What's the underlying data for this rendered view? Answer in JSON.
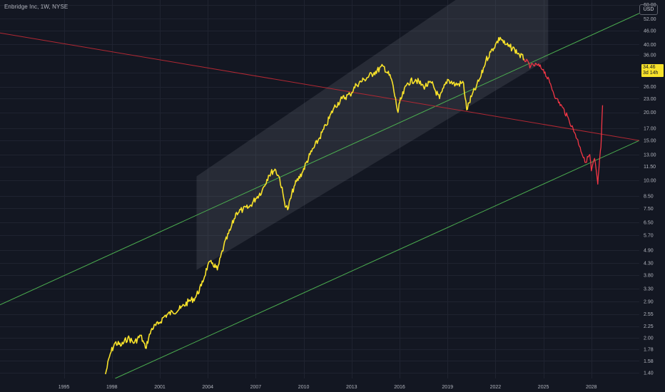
{
  "header": {
    "title": "Enbridge Inc, 1W, NYSE",
    "currency_button": "USD"
  },
  "price_tag": {
    "price": "34.46",
    "countdown": "3d 14h"
  },
  "colors": {
    "background": "#131722",
    "grid": "#1f2330",
    "axis_text": "#b2b5be",
    "price_line": "#f8e22a",
    "projection_line": "#f23645",
    "trend_line": "#4caf50",
    "downtrend_line": "#b22833",
    "channel_fill": "#787b86"
  },
  "chart_data": {
    "type": "line",
    "scale": "log",
    "title": "Enbridge Inc, 1W, NYSE",
    "xlabel": "",
    "ylabel": "",
    "xlim": [
      1991.0,
      2031.0
    ],
    "ylim": [
      1.32,
      63.0
    ],
    "x_ticks": [
      "1995",
      "1998",
      "2001",
      "2004",
      "2007",
      "2010",
      "2013",
      "2016",
      "2019",
      "2022",
      "2025",
      "2028"
    ],
    "y_ticks": [
      "60.00",
      "52.00",
      "46.00",
      "40.00",
      "36.00",
      "30.00",
      "26.00",
      "23.00",
      "20.00",
      "17.00",
      "15.00",
      "13.00",
      "11.50",
      "10.00",
      "8.50",
      "7.50",
      "6.50",
      "5.70",
      "4.90",
      "4.30",
      "3.80",
      "3.30",
      "2.90",
      "2.55",
      "2.25",
      "2.00",
      "1.78",
      "1.58",
      "1.40"
    ],
    "series": [
      {
        "role": "historical",
        "color": "#f8e22a",
        "x": [
          1997.6,
          1997.9,
          1998.2,
          1998.6,
          1999.0,
          1999.4,
          1999.8,
          2000.1,
          2000.5,
          2000.9,
          2001.3,
          2001.8,
          2002.3,
          2002.8,
          2003.2,
          2003.6,
          2004.0,
          2004.3,
          2004.6,
          2005.0,
          2005.4,
          2005.8,
          2006.2,
          2006.6,
          2007.0,
          2007.4,
          2007.8,
          2008.2,
          2008.5,
          2008.8,
          2009.0,
          2009.4,
          2009.9,
          2010.4,
          2010.9,
          2011.4,
          2011.9,
          2012.4,
          2012.9,
          2013.3,
          2013.8,
          2014.4,
          2015.0,
          2015.5,
          2015.9,
          2016.0,
          2016.5,
          2017.0,
          2017.5,
          2018.0,
          2018.5,
          2019.0,
          2019.5,
          2020.0,
          2020.2,
          2020.5,
          2020.8,
          2021.1,
          2021.4,
          2021.7,
          2022.0,
          2022.3,
          2022.6,
          2022.9,
          2023.2,
          2023.5,
          2023.8
        ],
        "y": [
          1.38,
          1.7,
          1.9,
          1.85,
          2.0,
          1.9,
          2.05,
          1.8,
          2.2,
          2.3,
          2.5,
          2.6,
          2.7,
          2.9,
          3.0,
          3.4,
          4.2,
          4.3,
          4.0,
          5.1,
          6.0,
          7.2,
          7.4,
          7.6,
          8.3,
          9.0,
          10.5,
          11.2,
          10.2,
          8.0,
          7.4,
          9.4,
          10.8,
          13.0,
          15.0,
          17.5,
          21.0,
          23.0,
          24.0,
          26.5,
          28.0,
          30.0,
          32.0,
          28.0,
          20.0,
          22.0,
          27.0,
          28.0,
          26.0,
          27.0,
          23.0,
          28.0,
          26.5,
          27.0,
          20.5,
          23.5,
          26.0,
          29.0,
          34.0,
          37.0,
          40.0,
          43.0,
          40.0,
          39.0,
          38.0,
          36.0,
          34.5
        ]
      },
      {
        "role": "projection",
        "color": "#f23645",
        "x": [
          2023.8,
          2024.2,
          2024.6,
          2025.0,
          2025.4,
          2025.8,
          2026.2,
          2026.6,
          2027.0,
          2027.3,
          2027.6,
          2027.9,
          2028.0,
          2028.2,
          2028.4,
          2028.5,
          2028.6,
          2028.7
        ],
        "y": [
          34.5,
          32.0,
          32.5,
          31.0,
          27.0,
          23.0,
          21.0,
          18.5,
          16.0,
          14.0,
          12.0,
          13.0,
          11.0,
          12.5,
          9.6,
          12.0,
          14.0,
          21.5
        ]
      }
    ],
    "overlays": {
      "channel": {
        "x_start": 2003.3,
        "x_end": 2025.3,
        "lower_start": 4.0,
        "upper_start": 10.4,
        "lower_end": 34.5,
        "upper_end": 120.0
      },
      "trend_lines": [
        {
          "from": [
            1991.0,
            2.8
          ],
          "to": [
            2031.0,
            55.0
          ]
        },
        {
          "from": [
            1998.2,
            1.32
          ],
          "to": [
            2031.0,
            15.0
          ]
        }
      ],
      "downtrend_line": {
        "from": [
          1991.0,
          45.0
        ],
        "to": [
          2031.0,
          15.0
        ]
      }
    },
    "grid": true,
    "legend": "none"
  }
}
